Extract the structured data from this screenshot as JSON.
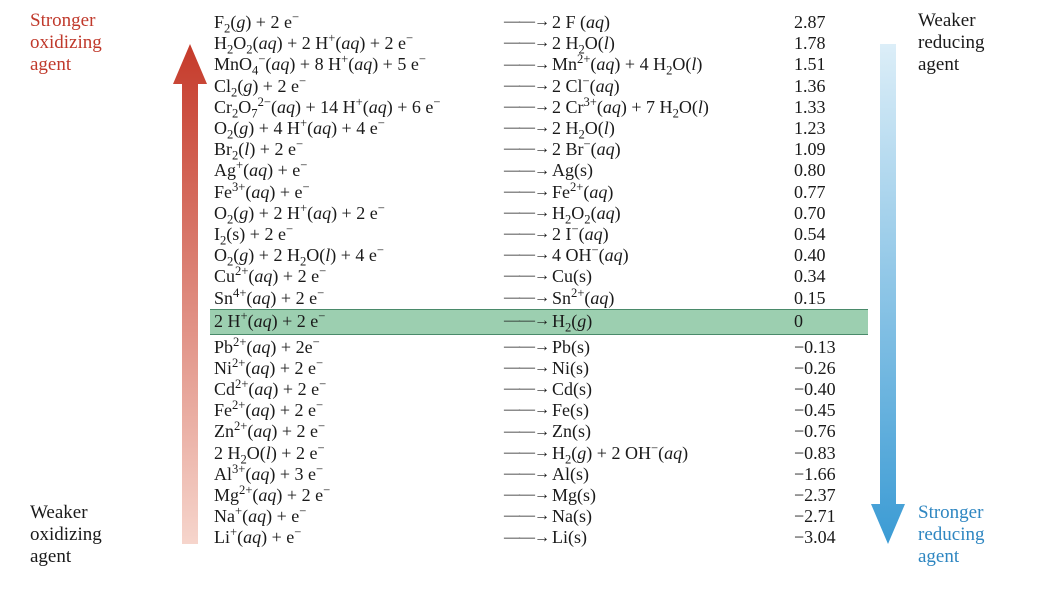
{
  "labels": {
    "left_top": "Stronger oxidizing agent",
    "left_bot": "Weaker oxidizing agent",
    "right_top": "Weaker reducing agent",
    "right_bot": "Stronger reducing agent"
  },
  "colors": {
    "red_text": "#c0392b",
    "blue_text": "#2e86c1",
    "highlight_bg": "#9ccfb0",
    "highlight_border": "#4a8a6a",
    "red_arrow_top": "#c53a2a",
    "red_arrow_bot": "#f6d5cc",
    "blue_arrow_top": "#dceef8",
    "blue_arrow_bot": "#3b9bd4"
  },
  "arrow_glyph": "——→",
  "rows": [
    {
      "lhs": "F<sub>2</sub>(<span class='it'>g</span>)&nbsp;+&nbsp;2&nbsp;e<sup>&minus;</sup>",
      "rhs": "2&nbsp;F&nbsp;(<span class='it'>aq</span>)",
      "pot": "2.87",
      "hl": false
    },
    {
      "lhs": "H<sub>2</sub>O<sub>2</sub>(<span class='it'>aq</span>)&nbsp;+&nbsp;2&nbsp;H<sup>+</sup>(<span class='it'>aq</span>)&nbsp;+&nbsp;2&nbsp;e<sup>&minus;</sup>",
      "rhs": "2&nbsp;H<sub>2</sub>O(<span class='it'>l</span>)",
      "pot": "1.78",
      "hl": false
    },
    {
      "lhs": "MnO<sub>4</sub><sup>&minus;</sup>(<span class='it'>aq</span>)&nbsp;+&nbsp;8&nbsp;H<sup>+</sup>(<span class='it'>aq</span>)&nbsp;+&nbsp;5&nbsp;e<sup>&minus;</sup>",
      "rhs": "Mn<sup>2+</sup>(<span class='it'>aq</span>)&nbsp;+&nbsp;4&nbsp;H<sub>2</sub>O(<span class='it'>l</span>)",
      "pot": "1.51",
      "hl": false
    },
    {
      "lhs": "Cl<sub>2</sub>(<span class='it'>g</span>)&nbsp;+&nbsp;2&nbsp;e<sup>&minus;</sup>",
      "rhs": "2&nbsp;Cl<sup>&minus;</sup>(<span class='it'>aq</span>)",
      "pot": "1.36",
      "hl": false
    },
    {
      "lhs": "Cr<sub>2</sub>O<sub>7</sub><sup>2&minus;</sup>(<span class='it'>aq</span>)&nbsp;+&nbsp;14&nbsp;H<sup>+</sup>(<span class='it'>aq</span>)&nbsp;+&nbsp;6&nbsp;e<sup>&minus;</sup>",
      "rhs": "2&nbsp;Cr<sup>3+</sup>(<span class='it'>aq</span>)&nbsp;+&nbsp;7&nbsp;H<sub>2</sub>O(<span class='it'>l</span>)",
      "pot": "1.33",
      "hl": false
    },
    {
      "lhs": "O<sub>2</sub>(<span class='it'>g</span>)&nbsp;+&nbsp;4&nbsp;H<sup>+</sup>(<span class='it'>aq</span>)&nbsp;+&nbsp;4&nbsp;e<sup>&minus;</sup>",
      "rhs": "2&nbsp;H<sub>2</sub>O(<span class='it'>l</span>)",
      "pot": "1.23",
      "hl": false
    },
    {
      "lhs": "Br<sub>2</sub>(<span class='it'>l</span>)&nbsp;+&nbsp;2&nbsp;e<sup>&minus;</sup>",
      "rhs": "2&nbsp;Br<sup>&minus;</sup>(<span class='it'>aq</span>)",
      "pot": "1.09",
      "hl": false
    },
    {
      "lhs": "Ag<sup>+</sup>(<span class='it'>aq</span>)&nbsp;+&nbsp;e<sup>&minus;</sup>",
      "rhs": "Ag(s)",
      "pot": "0.80",
      "hl": false
    },
    {
      "lhs": "Fe<sup>3+</sup>(<span class='it'>aq</span>)&nbsp;+&nbsp;e<sup>&minus;</sup>",
      "rhs": "Fe<sup>2+</sup>(<span class='it'>aq</span>)",
      "pot": "0.77",
      "hl": false
    },
    {
      "lhs": "O<sub>2</sub>(<span class='it'>g</span>)&nbsp;+&nbsp;2&nbsp;H<sup>+</sup>(<span class='it'>aq</span>)&nbsp;+&nbsp;2&nbsp;e<sup>&minus;</sup>",
      "rhs": "H<sub>2</sub>O<sub>2</sub>(<span class='it'>aq</span>)",
      "pot": "0.70",
      "hl": false
    },
    {
      "lhs": "I<sub>2</sub>(s)&nbsp;+&nbsp;2&nbsp;e<sup>&minus;</sup>",
      "rhs": "2&nbsp;I<sup>&minus;</sup>(<span class='it'>aq</span>)",
      "pot": "0.54",
      "hl": false
    },
    {
      "lhs": "O<sub>2</sub>(<span class='it'>g</span>)&nbsp;+&nbsp;2&nbsp;H<sub>2</sub>O(<span class='it'>l</span>)&nbsp;+&nbsp;4&nbsp;e<sup>&minus;</sup>",
      "rhs": "4&nbsp;OH<sup>&minus;</sup>(<span class='it'>aq</span>)",
      "pot": "0.40",
      "hl": false
    },
    {
      "lhs": "Cu<sup>2+</sup>(<span class='it'>aq</span>)&nbsp;+&nbsp;2&nbsp;e<sup>&minus;</sup>",
      "rhs": "Cu(s)",
      "pot": "0.34",
      "hl": false
    },
    {
      "lhs": "Sn<sup>4+</sup>(<span class='it'>aq</span>)&nbsp;+&nbsp;2&nbsp;e<sup>&minus;</sup>",
      "rhs": "Sn<sup>2+</sup>(<span class='it'>aq</span>)",
      "pot": "0.15",
      "hl": false
    },
    {
      "lhs": "2&nbsp;H<sup>+</sup>(<span class='it'>aq</span>)&nbsp;+&nbsp;2&nbsp;e<sup>&minus;</sup>",
      "rhs": "H<sub>2</sub>(<span class='it'>g</span>)",
      "pot": "0",
      "hl": true
    },
    {
      "lhs": "Pb<sup>2+</sup>(<span class='it'>aq</span>)&nbsp;+&nbsp;2e<sup>&minus;</sup>",
      "rhs": "Pb(s)",
      "pot": "&minus;0.13",
      "hl": false
    },
    {
      "lhs": "Ni<sup>2+</sup>(<span class='it'>aq</span>)&nbsp;+&nbsp;2&nbsp;e<sup>&minus;</sup>",
      "rhs": "Ni(s)",
      "pot": "&minus;0.26",
      "hl": false
    },
    {
      "lhs": "Cd<sup>2+</sup>(<span class='it'>aq</span>)&nbsp;+&nbsp;2&nbsp;e<sup>&minus;</sup>",
      "rhs": "Cd(s)",
      "pot": "&minus;0.40",
      "hl": false
    },
    {
      "lhs": "Fe<sup>2+</sup>(<span class='it'>aq</span>)&nbsp;+&nbsp;2&nbsp;e<sup>&minus;</sup>",
      "rhs": "Fe(s)",
      "pot": "&minus;0.45",
      "hl": false
    },
    {
      "lhs": "Zn<sup>2+</sup>(<span class='it'>aq</span>)&nbsp;+&nbsp;2&nbsp;e<sup>&minus;</sup>",
      "rhs": "Zn(s)",
      "pot": "&minus;0.76",
      "hl": false
    },
    {
      "lhs": "2&nbsp;H<sub>2</sub>O(<span class='it'>l</span>)&nbsp;+&nbsp;2&nbsp;e<sup>&minus;</sup>",
      "rhs": "H<sub>2</sub>(<span class='it'>g</span>)&nbsp;+&nbsp;2&nbsp;OH<sup>&minus;</sup>(<span class='it'>aq</span>)",
      "pot": "&minus;0.83",
      "hl": false
    },
    {
      "lhs": "Al<sup>3+</sup>(<span class='it'>aq</span>)&nbsp;+&nbsp;3&nbsp;e<sup>&minus;</sup>",
      "rhs": "Al(s)",
      "pot": "&minus;1.66",
      "hl": false
    },
    {
      "lhs": "Mg<sup>2+</sup>(<span class='it'>aq</span>)&nbsp;+&nbsp;2&nbsp;e<sup>&minus;</sup>",
      "rhs": "Mg(s)",
      "pot": "&minus;2.37",
      "hl": false
    },
    {
      "lhs": "Na<sup>+</sup>(<span class='it'>aq</span>)&nbsp;+&nbsp;e<sup>&minus;</sup>",
      "rhs": "Na(s)",
      "pot": "&minus;2.71",
      "hl": false
    },
    {
      "lhs": "Li<sup>+</sup>(<span class='it'>aq</span>)&nbsp;+&nbsp;e<sup>&minus;</sup>",
      "rhs": "Li(s)",
      "pot": "&minus;3.04",
      "hl": false
    }
  ]
}
